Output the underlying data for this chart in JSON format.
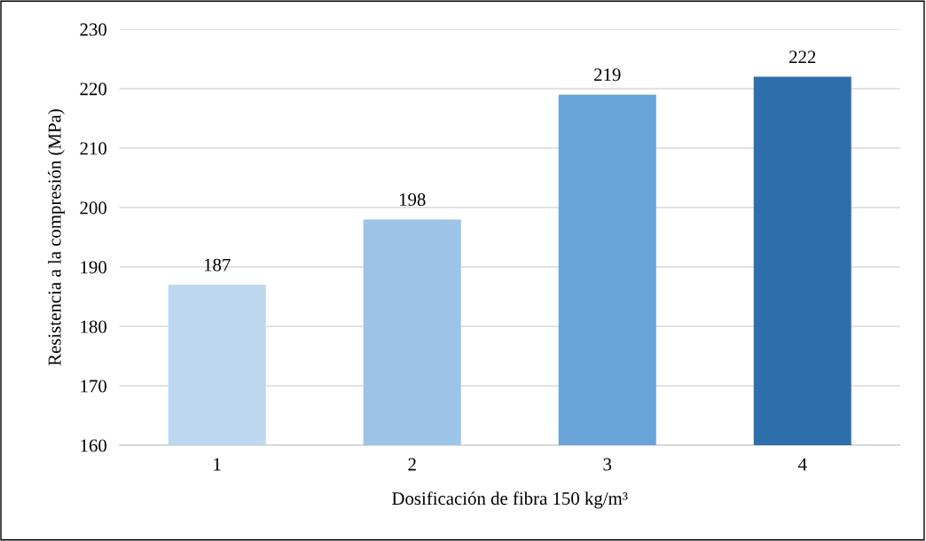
{
  "chart_data": {
    "type": "bar",
    "xlabel": "Dosificación de fibra 150 kg/m³",
    "ylabel": "Resistencia a la compresión (MPa)",
    "categories": [
      "1",
      "2",
      "3",
      "4"
    ],
    "values": [
      187,
      198,
      219,
      222
    ],
    "colors": [
      "#bdd7ee",
      "#9dc3e6",
      "#68a4d8",
      "#2e6fab"
    ],
    "ylim": [
      160,
      230
    ],
    "yticks": [
      160,
      170,
      180,
      190,
      200,
      210,
      220,
      230
    ],
    "grid": "y",
    "data_labels": true
  }
}
